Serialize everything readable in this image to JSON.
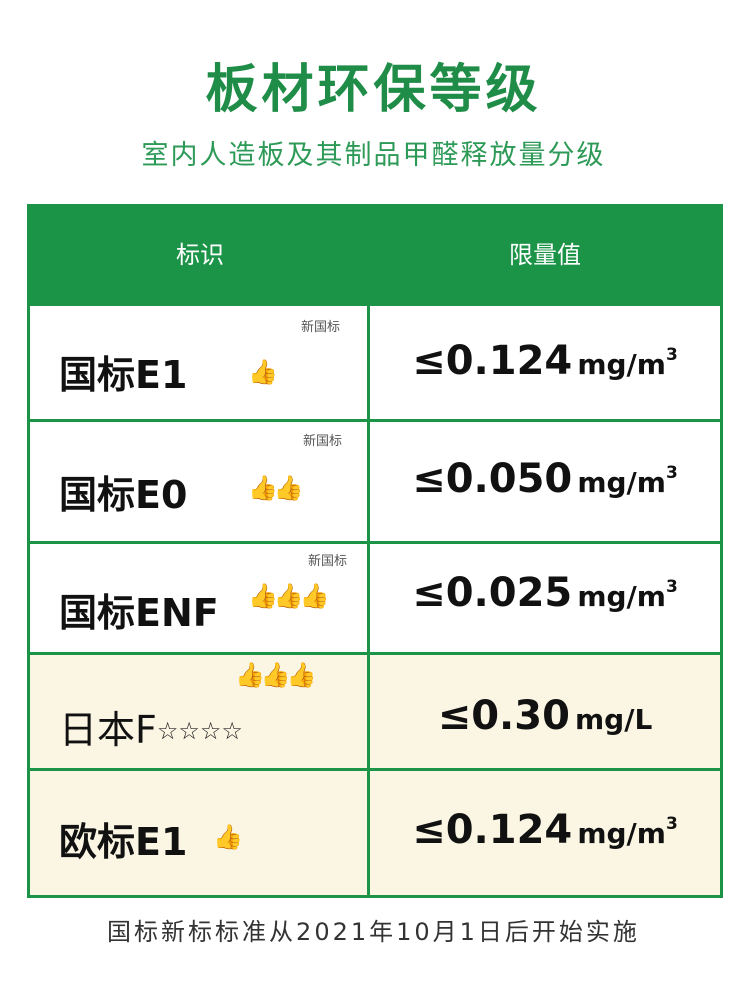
{
  "title": "板材环保等级",
  "subtitle": "室内人造板及其制品甲醛释放量分级",
  "table": {
    "headers": [
      "标识",
      "限量值"
    ],
    "rows": [
      {
        "label": "国标E1",
        "tag": "新国标",
        "thumbs": "👍",
        "stars": "",
        "value": "≤0.124",
        "unit": "mg/m",
        "unit_sup": "3"
      },
      {
        "label": "国标E0",
        "tag": "新国标",
        "thumbs": "👍👍",
        "stars": "",
        "value": "≤0.050",
        "unit": "mg/m",
        "unit_sup": "3"
      },
      {
        "label": "国标ENF",
        "tag": "新国标",
        "thumbs": "👍👍👍",
        "stars": "",
        "value": "≤0.025",
        "unit": "mg/m",
        "unit_sup": "3"
      },
      {
        "label": "日本F",
        "tag": "",
        "thumbs": "👍👍👍",
        "stars": "☆☆☆☆",
        "value": "≤0.30",
        "unit": "mg/L",
        "unit_sup": ""
      },
      {
        "label": "欧标E1",
        "tag": "",
        "thumbs": "👍",
        "stars": "",
        "value": "≤0.124",
        "unit": "mg/m",
        "unit_sup": "3"
      }
    ]
  },
  "footnote": "国标新标标准从2021年10月1日后开始实施",
  "colors": {
    "brand_green": "#1c9448",
    "title_green": "#1f8d48",
    "cream_row": "#fbf6e4"
  }
}
